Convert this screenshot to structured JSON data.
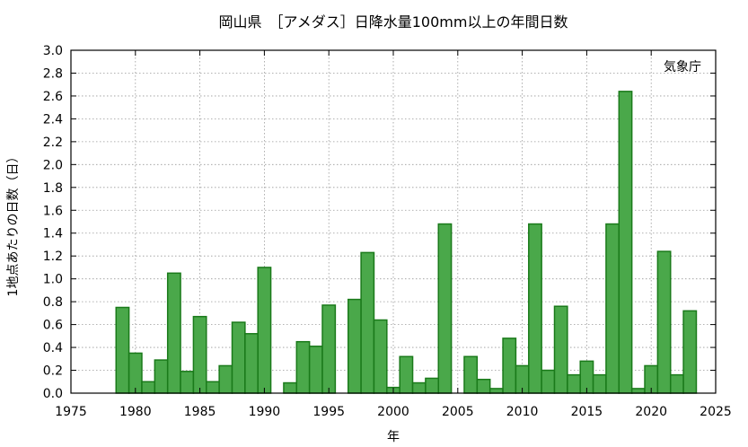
{
  "chart_data": {
    "type": "bar",
    "title": "岡山県　［アメダス］日降水量100mm以上の年間日数",
    "xlabel": "年",
    "ylabel": "1地点あたりの日数（日）",
    "annotation": "気象庁",
    "xlim": [
      1975,
      2025
    ],
    "ylim": [
      0,
      3.0
    ],
    "x_ticks": [
      1975,
      1980,
      1985,
      1990,
      1995,
      2000,
      2005,
      2010,
      2015,
      2020,
      2025
    ],
    "y_ticks": [
      "0.0",
      "0.2",
      "0.4",
      "0.6",
      "0.8",
      "1.0",
      "1.2",
      "1.4",
      "1.6",
      "1.8",
      "2.0",
      "2.2",
      "2.4",
      "2.6",
      "2.8",
      "3.0"
    ],
    "grid": true,
    "bar_color": "#4aa84a",
    "bar_edge_color": "#1a7a1a",
    "x": [
      1979,
      1980,
      1981,
      1982,
      1983,
      1984,
      1985,
      1986,
      1987,
      1988,
      1989,
      1990,
      1991,
      1992,
      1993,
      1994,
      1995,
      1996,
      1997,
      1998,
      1999,
      2000,
      2001,
      2002,
      2003,
      2004,
      2005,
      2006,
      2007,
      2008,
      2009,
      2010,
      2011,
      2012,
      2013,
      2014,
      2015,
      2016,
      2017,
      2018,
      2019,
      2020,
      2021,
      2022,
      2023
    ],
    "values": [
      0.75,
      0.35,
      0.1,
      0.29,
      1.05,
      0.19,
      0.67,
      0.1,
      0.24,
      0.62,
      0.52,
      1.1,
      0.0,
      0.09,
      0.45,
      0.41,
      0.77,
      0.0,
      0.82,
      1.23,
      0.64,
      0.05,
      0.32,
      0.09,
      0.13,
      1.48,
      0.0,
      0.32,
      0.12,
      0.04,
      0.48,
      0.24,
      1.48,
      0.2,
      0.76,
      0.16,
      0.28,
      0.16,
      1.48,
      2.64,
      0.04,
      0.24,
      1.24,
      0.16,
      0.72
    ]
  }
}
